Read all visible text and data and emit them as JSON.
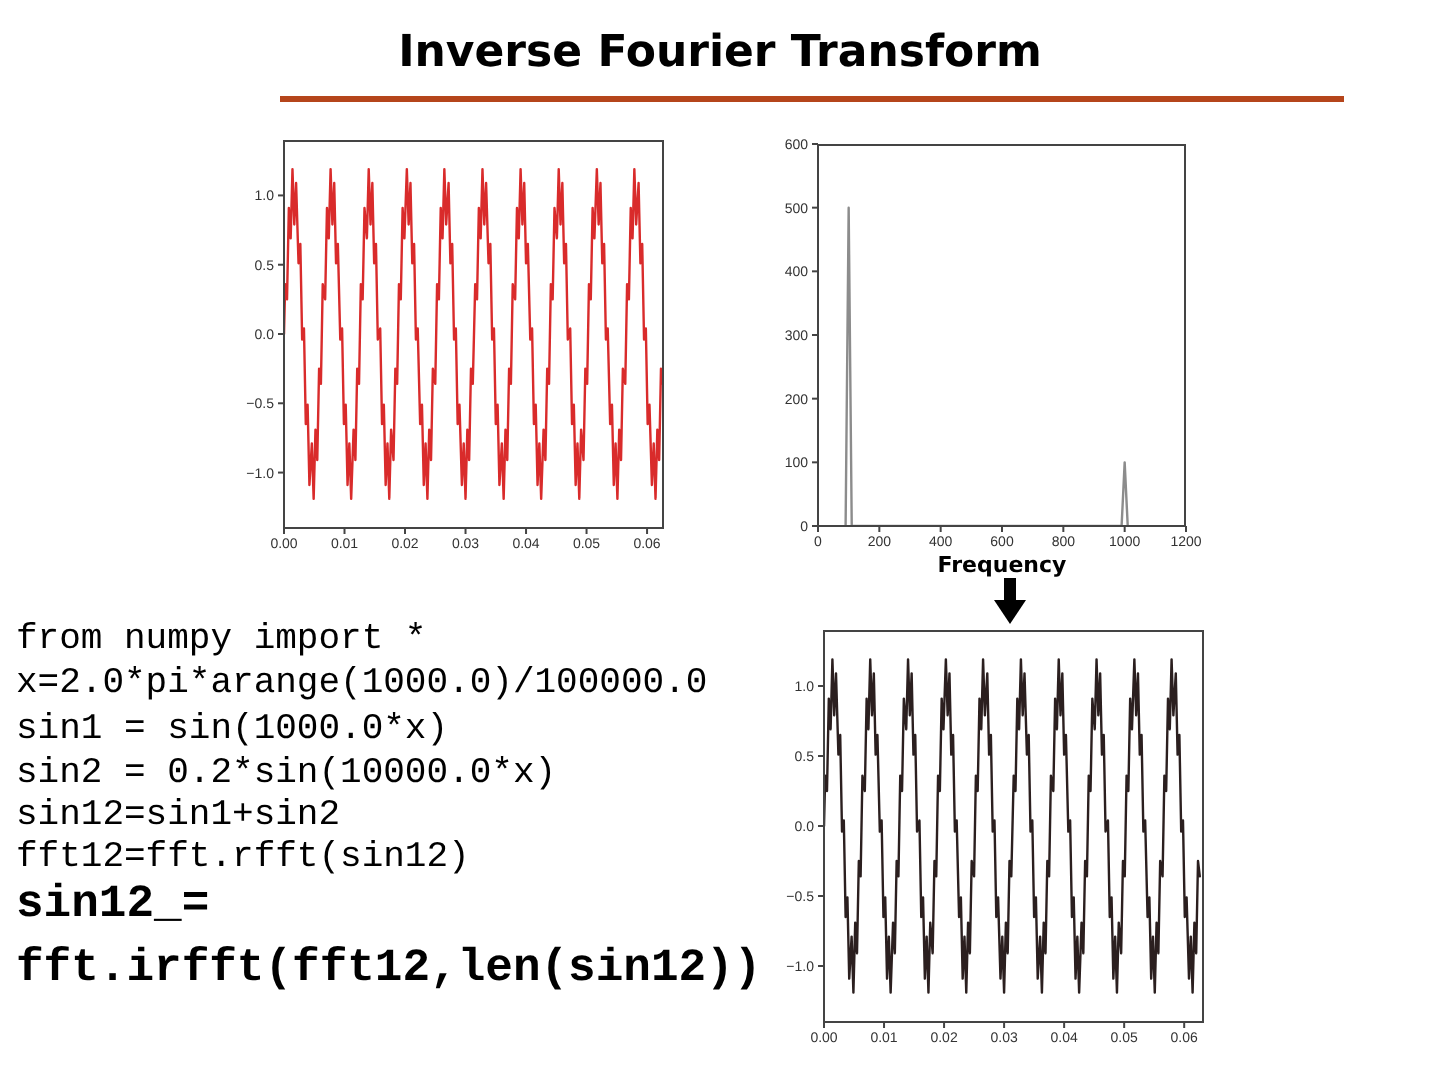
{
  "chart_data": [
    {
      "type": "line",
      "title": "Inverse Fourier Transform",
      "color": "#d92b2b",
      "x": [
        0,
        0.0002,
        0.0005,
        0.0008,
        0.0011,
        0.0014,
        0.0017,
        0.002,
        0.0024,
        0.0027,
        0.003,
        0.0033,
        0.0036,
        0.0039,
        0.0042,
        0.0046,
        0.0049,
        0.0052,
        0.0055,
        0.0058,
        0.0061,
        0.0064,
        0.0068,
        0.0071,
        0.0074,
        0.0077,
        0.008,
        0.0083,
        0.0086,
        0.0089,
        0.0093,
        0.0096,
        0.0099,
        0.0102,
        0.0105,
        0.0108,
        0.0111,
        0.0115,
        0.0118,
        0.0121,
        0.0124,
        0.0127,
        0.013,
        0.0133,
        0.0137,
        0.014,
        0.0143,
        0.0146,
        0.0149,
        0.0152,
        0.0155,
        0.0159,
        0.0162,
        0.0165,
        0.0168,
        0.0171,
        0.0174,
        0.0177,
        0.0181,
        0.0184,
        0.0187,
        0.019,
        0.0193,
        0.0196,
        0.0199,
        0.0203,
        0.0206,
        0.0209,
        0.0212,
        0.0215,
        0.0218,
        0.0221,
        0.0225,
        0.0228,
        0.0231,
        0.0234,
        0.0237,
        0.024,
        0.0243,
        0.0246,
        0.025,
        0.0253,
        0.0256,
        0.0259,
        0.0262,
        0.0265,
        0.0268,
        0.0272,
        0.0275,
        0.0278,
        0.0281,
        0.0284,
        0.0287,
        0.029,
        0.0294,
        0.0297,
        0.03,
        0.0303,
        0.0306,
        0.0309,
        0.0312,
        0.0316,
        0.0319,
        0.0322,
        0.0325,
        0.0328,
        0.0331,
        0.0334,
        0.0338,
        0.0341,
        0.0344,
        0.0347,
        0.035,
        0.0353,
        0.0356,
        0.036,
        0.0363,
        0.0366,
        0.0369,
        0.0372,
        0.0375,
        0.0378,
        0.0382,
        0.0385,
        0.0388,
        0.0391,
        0.0394,
        0.0397,
        0.04,
        0.0403,
        0.0407,
        0.041,
        0.0413,
        0.0416,
        0.0419,
        0.0422,
        0.0425,
        0.0429,
        0.0432,
        0.0435,
        0.0438,
        0.0441,
        0.0444,
        0.0447,
        0.0451,
        0.0454,
        0.0457,
        0.046,
        0.0463,
        0.0466,
        0.0469,
        0.0473,
        0.0476,
        0.0479,
        0.0482,
        0.0485,
        0.0488,
        0.0491,
        0.0495,
        0.0498,
        0.0501,
        0.0504,
        0.0507,
        0.051,
        0.0513,
        0.0517,
        0.052,
        0.0523,
        0.0526,
        0.0529,
        0.0532,
        0.0535,
        0.0539,
        0.0542,
        0.0545,
        0.0548,
        0.0551,
        0.0554,
        0.0557,
        0.056,
        0.0564,
        0.0567,
        0.057,
        0.0573,
        0.0576,
        0.0579,
        0.0582,
        0.0586,
        0.0589,
        0.0592,
        0.0595,
        0.0598,
        0.0601,
        0.0604,
        0.0608,
        0.0611,
        0.0614,
        0.0617,
        0.062,
        0.0623,
        0.0626
      ],
      "values": [
        0,
        0.36,
        0.25,
        0.91,
        0.69,
        1.19,
        0.79,
        1.09,
        0.51,
        0.65,
        -0.04,
        0.04,
        -0.65,
        -0.51,
        -1.09,
        -0.79,
        -1.19,
        -0.69,
        -0.91,
        -0.25,
        -0.36,
        0.36,
        0.25,
        0.91,
        0.69,
        1.19,
        0.79,
        1.09,
        0.51,
        0.65,
        -0.04,
        0.04,
        -0.65,
        -0.51,
        -1.09,
        -0.79,
        -1.19,
        -0.69,
        -0.91,
        -0.25,
        -0.36,
        0.36,
        0.25,
        0.91,
        0.69,
        1.19,
        0.79,
        1.09,
        0.51,
        0.65,
        -0.04,
        0.04,
        -0.65,
        -0.51,
        -1.09,
        -0.79,
        -1.19,
        -0.69,
        -0.91,
        -0.25,
        -0.36,
        0.36,
        0.25,
        0.91,
        0.69,
        1.19,
        0.79,
        1.09,
        0.51,
        0.65,
        -0.04,
        0.04,
        -0.65,
        -0.51,
        -1.09,
        -0.79,
        -1.19,
        -0.69,
        -0.91,
        -0.25,
        -0.36,
        0.36,
        0.25,
        0.91,
        0.69,
        1.19,
        0.79,
        1.09,
        0.51,
        0.65,
        -0.04,
        0.04,
        -0.65,
        -0.51,
        -1.09,
        -0.79,
        -1.19,
        -0.69,
        -0.91,
        -0.25,
        -0.36,
        0.36,
        0.25,
        0.91,
        0.69,
        1.19,
        0.79,
        1.09,
        0.51,
        0.65,
        -0.04,
        0.04,
        -0.65,
        -0.51,
        -1.09,
        -0.79,
        -1.19,
        -0.69,
        -0.91,
        -0.25,
        -0.36,
        0.36,
        0.25,
        0.91,
        0.69,
        1.19,
        0.79,
        1.09,
        0.51,
        0.65,
        -0.04,
        0.04,
        -0.65,
        -0.51,
        -1.09,
        -0.79,
        -1.19,
        -0.69,
        -0.91,
        -0.25,
        -0.36,
        0.36,
        0.25,
        0.91,
        0.69,
        1.19,
        0.79,
        1.09,
        0.51,
        0.65,
        -0.04,
        0.04,
        -0.65,
        -0.51,
        -1.09,
        -0.79,
        -1.19,
        -0.69,
        -0.91,
        -0.25,
        -0.36,
        0.36,
        0.25,
        0.91,
        0.69,
        1.19,
        0.79,
        1.09,
        0.51,
        0.65,
        -0.04,
        0.04,
        -0.65,
        -0.51,
        -1.09,
        -0.79,
        -1.19,
        -0.69,
        -0.91,
        -0.25,
        -0.36,
        0.36,
        0.25,
        0.91,
        0.69,
        1.19,
        0.79,
        1.09,
        0.51,
        0.65,
        -0.04,
        0.04,
        -0.65,
        -0.51,
        -1.09,
        -0.79,
        -1.19,
        -0.69,
        -0.91,
        -0.25,
        -0.36
      ],
      "xlim": [
        0,
        0.0628
      ],
      "xticks": [
        {
          "value": 0,
          "label": "0.00"
        },
        {
          "value": 0.01,
          "label": "0.01"
        },
        {
          "value": 0.02,
          "label": "0.02"
        },
        {
          "value": 0.03,
          "label": "0.03"
        },
        {
          "value": 0.04,
          "label": "0.04"
        },
        {
          "value": 0.05,
          "label": "0.05"
        },
        {
          "value": 0.06,
          "label": "0.06"
        }
      ],
      "ylim": [
        -1.4,
        1.4
      ],
      "yticks": [
        {
          "value": -1,
          "label": "−1.0"
        },
        {
          "value": -0.5,
          "label": "−0.5"
        },
        {
          "value": 0,
          "label": "0.0"
        },
        {
          "value": 0.5,
          "label": "0.5"
        },
        {
          "value": 1,
          "label": "1.0"
        }
      ]
    },
    {
      "type": "line",
      "xlabel": "Frequency",
      "color": "#8c8c8c",
      "x": [
        90,
        100,
        110,
        990,
        1000,
        1010
      ],
      "values": [
        0,
        500,
        0,
        0,
        100,
        0
      ],
      "xlim": [
        0,
        1200
      ],
      "xticks": [
        0,
        200,
        400,
        600,
        800,
        1000,
        1200
      ],
      "ylim": [
        0,
        600
      ],
      "yticks": [
        0,
        100,
        200,
        300,
        400,
        500,
        600
      ]
    },
    {
      "type": "line",
      "color": "#2b1f1f",
      "annotations": [
        "from numpy import *",
        "x=2.0*pi*arange(1000.0)/100000.0",
        "sin1 = sin(1000.0*x)",
        "sin2 = 0.2*sin(10000.0*x)",
        "sin12=sin1+sin2",
        "fft12=fft.rfft(sin12)",
        "sin12_=",
        "fft.irfft(fft12,len(sin12))"
      ],
      "x": [
        0,
        0.0002,
        0.0005,
        0.0008,
        0.0011,
        0.0014,
        0.0017,
        0.002,
        0.0024,
        0.0027,
        0.003,
        0.0033,
        0.0036,
        0.0039,
        0.0042,
        0.0046,
        0.0049,
        0.0052,
        0.0055,
        0.0058,
        0.0061,
        0.0064,
        0.0068,
        0.0071,
        0.0074,
        0.0077,
        0.008,
        0.0083,
        0.0086,
        0.0089,
        0.0093,
        0.0096,
        0.0099,
        0.0102,
        0.0105,
        0.0108,
        0.0111,
        0.0115,
        0.0118,
        0.0121,
        0.0124,
        0.0127,
        0.013,
        0.0133,
        0.0137,
        0.014,
        0.0143,
        0.0146,
        0.0149,
        0.0152,
        0.0155,
        0.0159,
        0.0162,
        0.0165,
        0.0168,
        0.0171,
        0.0174,
        0.0177,
        0.0181,
        0.0184,
        0.0187,
        0.019,
        0.0193,
        0.0196,
        0.0199,
        0.0203,
        0.0206,
        0.0209,
        0.0212,
        0.0215,
        0.0218,
        0.0221,
        0.0225,
        0.0228,
        0.0231,
        0.0234,
        0.0237,
        0.024,
        0.0243,
        0.0246,
        0.025,
        0.0253,
        0.0256,
        0.0259,
        0.0262,
        0.0265,
        0.0268,
        0.0272,
        0.0275,
        0.0278,
        0.0281,
        0.0284,
        0.0287,
        0.029,
        0.0294,
        0.0297,
        0.03,
        0.0303,
        0.0306,
        0.0309,
        0.0312,
        0.0316,
        0.0319,
        0.0322,
        0.0325,
        0.0328,
        0.0331,
        0.0334,
        0.0338,
        0.0341,
        0.0344,
        0.0347,
        0.035,
        0.0353,
        0.0356,
        0.036,
        0.0363,
        0.0366,
        0.0369,
        0.0372,
        0.0375,
        0.0378,
        0.0382,
        0.0385,
        0.0388,
        0.0391,
        0.0394,
        0.0397,
        0.04,
        0.0403,
        0.0407,
        0.041,
        0.0413,
        0.0416,
        0.0419,
        0.0422,
        0.0425,
        0.0429,
        0.0432,
        0.0435,
        0.0438,
        0.0441,
        0.0444,
        0.0447,
        0.0451,
        0.0454,
        0.0457,
        0.046,
        0.0463,
        0.0466,
        0.0469,
        0.0473,
        0.0476,
        0.0479,
        0.0482,
        0.0485,
        0.0488,
        0.0491,
        0.0495,
        0.0498,
        0.0501,
        0.0504,
        0.0507,
        0.051,
        0.0513,
        0.0517,
        0.052,
        0.0523,
        0.0526,
        0.0529,
        0.0532,
        0.0535,
        0.0539,
        0.0542,
        0.0545,
        0.0548,
        0.0551,
        0.0554,
        0.0557,
        0.056,
        0.0564,
        0.0567,
        0.057,
        0.0573,
        0.0576,
        0.0579,
        0.0582,
        0.0586,
        0.0589,
        0.0592,
        0.0595,
        0.0598,
        0.0601,
        0.0604,
        0.0608,
        0.0611,
        0.0614,
        0.0617,
        0.062,
        0.0623,
        0.0626
      ],
      "values": [
        0,
        0.36,
        0.25,
        0.91,
        0.69,
        1.19,
        0.79,
        1.09,
        0.51,
        0.65,
        -0.04,
        0.04,
        -0.65,
        -0.51,
        -1.09,
        -0.79,
        -1.19,
        -0.69,
        -0.91,
        -0.25,
        -0.36,
        0.36,
        0.25,
        0.91,
        0.69,
        1.19,
        0.79,
        1.09,
        0.51,
        0.65,
        -0.04,
        0.04,
        -0.65,
        -0.51,
        -1.09,
        -0.79,
        -1.19,
        -0.69,
        -0.91,
        -0.25,
        -0.36,
        0.36,
        0.25,
        0.91,
        0.69,
        1.19,
        0.79,
        1.09,
        0.51,
        0.65,
        -0.04,
        0.04,
        -0.65,
        -0.51,
        -1.09,
        -0.79,
        -1.19,
        -0.69,
        -0.91,
        -0.25,
        -0.36,
        0.36,
        0.25,
        0.91,
        0.69,
        1.19,
        0.79,
        1.09,
        0.51,
        0.65,
        -0.04,
        0.04,
        -0.65,
        -0.51,
        -1.09,
        -0.79,
        -1.19,
        -0.69,
        -0.91,
        -0.25,
        -0.36,
        0.36,
        0.25,
        0.91,
        0.69,
        1.19,
        0.79,
        1.09,
        0.51,
        0.65,
        -0.04,
        0.04,
        -0.65,
        -0.51,
        -1.09,
        -0.79,
        -1.19,
        -0.69,
        -0.91,
        -0.25,
        -0.36,
        0.36,
        0.25,
        0.91,
        0.69,
        1.19,
        0.79,
        1.09,
        0.51,
        0.65,
        -0.04,
        0.04,
        -0.65,
        -0.51,
        -1.09,
        -0.79,
        -1.19,
        -0.69,
        -0.91,
        -0.25,
        -0.36,
        0.36,
        0.25,
        0.91,
        0.69,
        1.19,
        0.79,
        1.09,
        0.51,
        0.65,
        -0.04,
        0.04,
        -0.65,
        -0.51,
        -1.09,
        -0.79,
        -1.19,
        -0.69,
        -0.91,
        -0.25,
        -0.36,
        0.36,
        0.25,
        0.91,
        0.69,
        1.19,
        0.79,
        1.09,
        0.51,
        0.65,
        -0.04,
        0.04,
        -0.65,
        -0.51,
        -1.09,
        -0.79,
        -1.19,
        -0.69,
        -0.91,
        -0.25,
        -0.36,
        0.36,
        0.25,
        0.91,
        0.69,
        1.19,
        0.79,
        1.09,
        0.51,
        0.65,
        -0.04,
        0.04,
        -0.65,
        -0.51,
        -1.09,
        -0.79,
        -1.19,
        -0.69,
        -0.91,
        -0.25,
        -0.36,
        0.36,
        0.25,
        0.91,
        0.69,
        1.19,
        0.79,
        1.09,
        0.51,
        0.65,
        -0.04,
        0.04,
        -0.65,
        -0.51,
        -1.09,
        -0.79,
        -1.19,
        -0.69,
        -0.91,
        -0.25,
        -0.36
      ],
      "xlim": [
        0,
        0.0633
      ],
      "xticks": [
        {
          "value": 0,
          "label": "0.00"
        },
        {
          "value": 0.01,
          "label": "0.01"
        },
        {
          "value": 0.02,
          "label": "0.02"
        },
        {
          "value": 0.03,
          "label": "0.03"
        },
        {
          "value": 0.04,
          "label": "0.04"
        },
        {
          "value": 0.05,
          "label": "0.05"
        },
        {
          "value": 0.06,
          "label": "0.06"
        }
      ],
      "ylim": [
        -1.4,
        1.4
      ],
      "yticks": [
        {
          "value": -1,
          "label": "−1.0"
        },
        {
          "value": -0.5,
          "label": "−0.5"
        },
        {
          "value": 0,
          "label": "0.0"
        },
        {
          "value": 0.5,
          "label": "0.5"
        },
        {
          "value": 1,
          "label": "1.0"
        }
      ]
    }
  ]
}
